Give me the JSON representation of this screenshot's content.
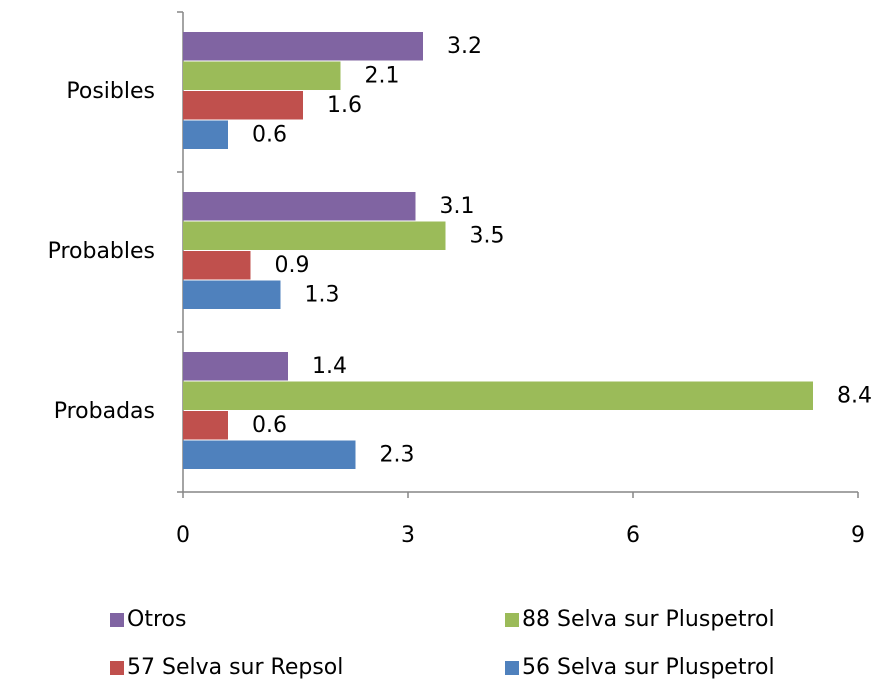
{
  "chart_data": {
    "type": "hbar",
    "categories": [
      "Posibles",
      "Probables",
      "Probadas"
    ],
    "series": [
      {
        "name": "Otros",
        "color": "#8064a2",
        "values": [
          3.2,
          3.1,
          1.4
        ]
      },
      {
        "name": "88 Selva sur Pluspetrol",
        "color": "#9bbb59",
        "values": [
          2.1,
          3.5,
          8.4
        ]
      },
      {
        "name": "57 Selva sur Repsol",
        "color": "#c0504d",
        "values": [
          1.6,
          0.9,
          0.6
        ]
      },
      {
        "name": "56 Selva sur Pluspetrol",
        "color": "#4f81bd",
        "values": [
          0.6,
          1.3,
          2.3
        ]
      }
    ],
    "xlim": [
      0,
      9
    ],
    "xticks": [
      0,
      3,
      6,
      9
    ],
    "grid": false,
    "legend": "bottom"
  }
}
